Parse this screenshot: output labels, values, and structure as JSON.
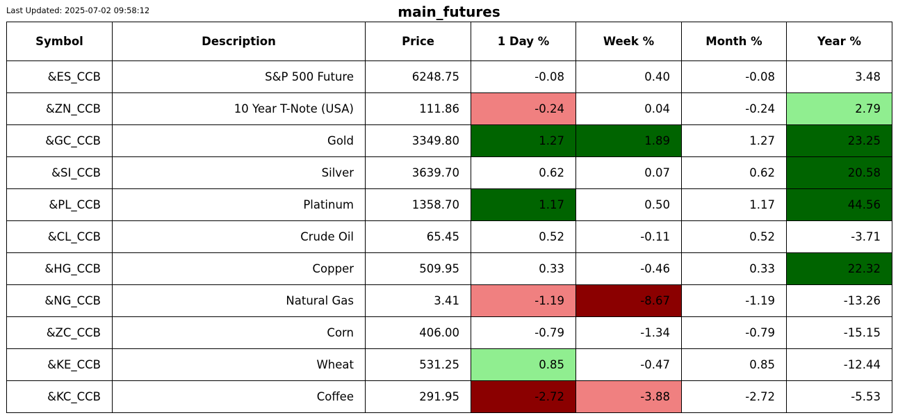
{
  "last_updated": "Last Updated: 2025-07-02 09:58:12",
  "chart_data": {
    "type": "table",
    "title": "main_futures",
    "columns": [
      "Symbol",
      "Description",
      "Price",
      "1 Day %",
      "Week %",
      "Month %",
      "Year %"
    ],
    "rows": [
      [
        "&ES_CCB",
        "S&P 500 Future",
        "6248.75",
        "-0.08",
        "0.40",
        "-0.08",
        "3.48"
      ],
      [
        "&ZN_CCB",
        "10 Year T-Note (USA)",
        "111.86",
        "-0.24",
        "0.04",
        "-0.24",
        "2.79"
      ],
      [
        "&GC_CCB",
        "Gold",
        "3349.80",
        "1.27",
        "1.89",
        "1.27",
        "23.25"
      ],
      [
        "&SI_CCB",
        "Silver",
        "3639.70",
        "0.62",
        "0.07",
        "0.62",
        "20.58"
      ],
      [
        "&PL_CCB",
        "Platinum",
        "1358.70",
        "1.17",
        "0.50",
        "1.17",
        "44.56"
      ],
      [
        "&CL_CCB",
        "Crude Oil",
        "65.45",
        "0.52",
        "-0.11",
        "0.52",
        "-3.71"
      ],
      [
        "&HG_CCB",
        "Copper",
        "509.95",
        "0.33",
        "-0.46",
        "0.33",
        "22.32"
      ],
      [
        "&NG_CCB",
        "Natural Gas",
        "3.41",
        "-1.19",
        "-8.67",
        "-1.19",
        "-13.26"
      ],
      [
        "&ZC_CCB",
        "Corn",
        "406.00",
        "-0.79",
        "-1.34",
        "-0.79",
        "-15.15"
      ],
      [
        "&KE_CCB",
        "Wheat",
        "531.25",
        "0.85",
        "-0.47",
        "0.85",
        "-12.44"
      ],
      [
        "&KC_CCB",
        "Coffee",
        "291.95",
        "-2.72",
        "-3.88",
        "-2.72",
        "-5.53"
      ]
    ],
    "cell_colors": [
      [
        "#ffffff",
        "#ffffff",
        "#ffffff",
        "#ffffff",
        "#ffffff",
        "#ffffff",
        "#ffffff"
      ],
      [
        "#ffffff",
        "#ffffff",
        "#ffffff",
        "#f08080",
        "#ffffff",
        "#ffffff",
        "#90ee90"
      ],
      [
        "#ffffff",
        "#ffffff",
        "#ffffff",
        "#006400",
        "#006400",
        "#ffffff",
        "#006400"
      ],
      [
        "#ffffff",
        "#ffffff",
        "#ffffff",
        "#ffffff",
        "#ffffff",
        "#ffffff",
        "#006400"
      ],
      [
        "#ffffff",
        "#ffffff",
        "#ffffff",
        "#006400",
        "#ffffff",
        "#ffffff",
        "#006400"
      ],
      [
        "#ffffff",
        "#ffffff",
        "#ffffff",
        "#ffffff",
        "#ffffff",
        "#ffffff",
        "#ffffff"
      ],
      [
        "#ffffff",
        "#ffffff",
        "#ffffff",
        "#ffffff",
        "#ffffff",
        "#ffffff",
        "#006400"
      ],
      [
        "#ffffff",
        "#ffffff",
        "#ffffff",
        "#f08080",
        "#8b0000",
        "#ffffff",
        "#ffffff"
      ],
      [
        "#ffffff",
        "#ffffff",
        "#ffffff",
        "#ffffff",
        "#ffffff",
        "#ffffff",
        "#ffffff"
      ],
      [
        "#ffffff",
        "#ffffff",
        "#ffffff",
        "#90ee90",
        "#ffffff",
        "#ffffff",
        "#ffffff"
      ],
      [
        "#ffffff",
        "#ffffff",
        "#ffffff",
        "#8b0000",
        "#f08080",
        "#ffffff",
        "#ffffff"
      ]
    ]
  }
}
